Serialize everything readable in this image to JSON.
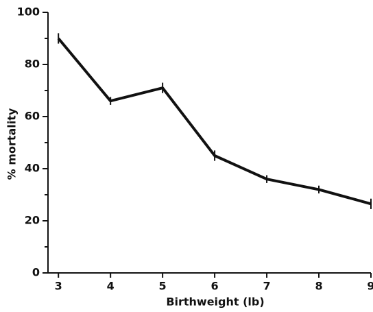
{
  "chart_data": {
    "type": "line",
    "x_label": "Birthweight  (lb)",
    "y_label": "% mortality",
    "x": [
      3,
      4,
      5,
      6,
      7,
      8,
      9
    ],
    "values": [
      90,
      66,
      71,
      45,
      36,
      32,
      26.5
    ],
    "errors": [
      2,
      1.5,
      2,
      2,
      1.5,
      1.5,
      2
    ],
    "color": "#111111",
    "xlim": [
      2.8,
      9
    ],
    "xticks": [
      3,
      4,
      5,
      6,
      7,
      8,
      9
    ],
    "ylim": [
      0,
      100
    ],
    "yticks": [
      0,
      20,
      40,
      60,
      80,
      100
    ],
    "yticks_minor": [
      10,
      30,
      50,
      70,
      90
    ]
  }
}
